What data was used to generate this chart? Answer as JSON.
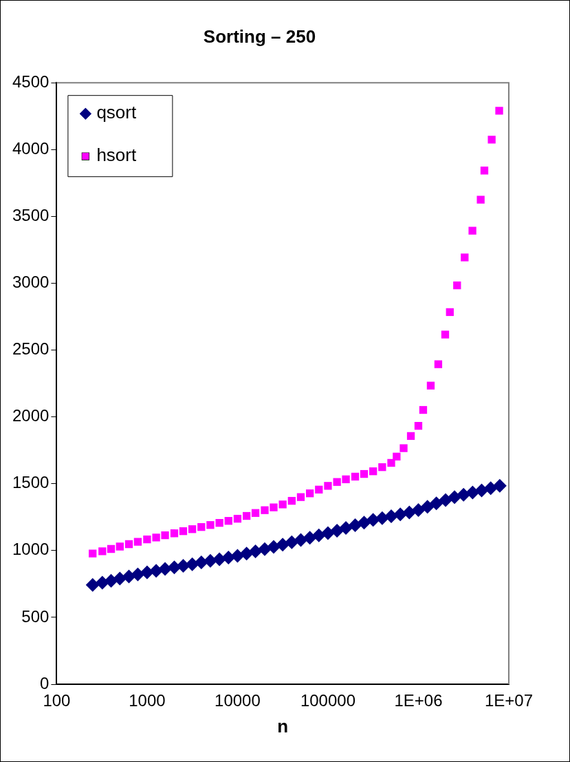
{
  "chart_data": {
    "type": "scatter",
    "title": "Sorting – 250",
    "xlabel": "n",
    "log": "x",
    "xlim": [
      100,
      10000000
    ],
    "xticks": [
      100,
      1000,
      10000,
      100000,
      {
        "value": 1000000,
        "label": "1E+06"
      },
      {
        "value": 10000000,
        "label": "1E+07"
      }
    ],
    "ylim": [
      0,
      4500
    ],
    "yticks": [
      0,
      500,
      1000,
      1500,
      2000,
      2500,
      3000,
      3500,
      4000,
      4500
    ],
    "grid": false,
    "legend": "top left",
    "series": [
      {
        "name": "qsort",
        "color": "#000080",
        "marker": "diamond",
        "x": [
          250,
          320,
          400,
          500,
          630,
          790,
          1000,
          1260,
          1580,
          2000,
          2510,
          3160,
          3980,
          5010,
          6310,
          7940,
          10000,
          12600,
          15800,
          20000,
          25100,
          31600,
          39800,
          50100,
          63100,
          79400,
          100000,
          126000,
          158000,
          200000,
          251000,
          316000,
          398000,
          501000,
          631000,
          794000,
          1000000,
          1260000,
          1580000,
          2000000,
          2510000,
          3160000,
          3980000,
          5010000,
          6310000,
          7940000
        ],
        "values": [
          743,
          759,
          774,
          790,
          806,
          821,
          837,
          849,
          862,
          874,
          886,
          898,
          911,
          923,
          935,
          948,
          960,
          977,
          994,
          1011,
          1027,
          1044,
          1062,
          1079,
          1096,
          1114,
          1131,
          1149,
          1169,
          1189,
          1209,
          1229,
          1243,
          1257,
          1271,
          1285,
          1303,
          1328,
          1353,
          1378,
          1400,
          1417,
          1434,
          1450,
          1467,
          1484
        ]
      },
      {
        "name": "hsort",
        "color": "#ff00ff",
        "marker": "square",
        "x": [
          250,
          320,
          400,
          500,
          630,
          790,
          1000,
          1260,
          1580,
          2000,
          2510,
          3160,
          3980,
          5010,
          6310,
          7940,
          10000,
          12600,
          15800,
          20000,
          25100,
          31600,
          39800,
          50100,
          63100,
          79400,
          100000,
          126000,
          158000,
          200000,
          251000,
          316000,
          398000,
          501000,
          575000,
          687000,
          826000,
          1000000,
          1130000,
          1370000,
          1660000,
          1980000,
          2230000,
          2680000,
          3250000,
          3960000,
          4890000,
          5370000,
          6470000,
          7830000
        ],
        "values": [
          978,
          995,
          1012,
          1030,
          1048,
          1065,
          1083,
          1098,
          1114,
          1129,
          1145,
          1160,
          1176,
          1191,
          1207,
          1222,
          1238,
          1259,
          1281,
          1302,
          1323,
          1345,
          1372,
          1400,
          1428,
          1456,
          1484,
          1513,
          1533,
          1553,
          1573,
          1593,
          1624,
          1656,
          1703,
          1766,
          1857,
          1933,
          2052,
          2234,
          2394,
          2616,
          2784,
          2984,
          3193,
          3393,
          3625,
          3843,
          4074,
          4291
        ]
      }
    ]
  }
}
